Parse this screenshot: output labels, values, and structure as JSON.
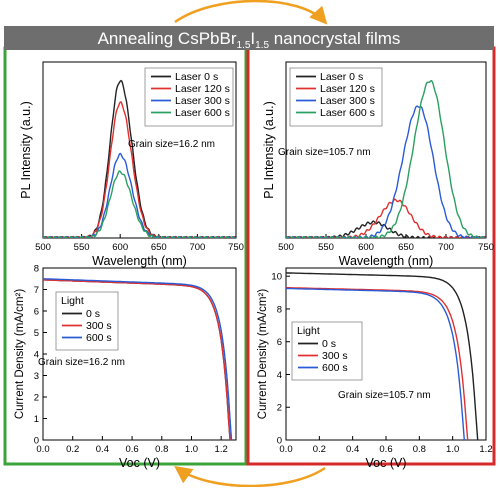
{
  "banner": {
    "title_prefix": "Annealing CsPbBr",
    "sub1": "1.5",
    "middle": "I",
    "sub2": "1.5",
    "title_suffix": " nanocrystal films"
  },
  "colors": {
    "left_frame": "#3aa33a",
    "right_frame": "#d62a2a",
    "banner_bg": "#6e6e6e",
    "arrow": "#f0a021"
  },
  "chart_data": [
    {
      "id": "pl_small",
      "type": "line",
      "xlabel": "Wavelength (nm)",
      "ylabel": "PL Intensity (a.u.)",
      "xlim": [
        500,
        750
      ],
      "xticks": [
        500,
        550,
        600,
        650,
        700,
        750
      ],
      "show_yticks": false,
      "annotation": "Grain size=16.2 nm",
      "legend_title": "",
      "legend_position": "top-right",
      "series": [
        {
          "name": "Laser 0 s",
          "color": "#222222",
          "peak_wavelength": 600,
          "relative_peak": 1.0
        },
        {
          "name": "Laser 120 s",
          "color": "#e03030",
          "peak_wavelength": 600,
          "relative_peak": 0.86
        },
        {
          "name": "Laser 300 s",
          "color": "#2a5bd7",
          "peak_wavelength": 600,
          "relative_peak": 0.53
        },
        {
          "name": "Laser 600 s",
          "color": "#2aa060",
          "peak_wavelength": 600,
          "relative_peak": 0.42
        }
      ]
    },
    {
      "id": "pl_large",
      "type": "line",
      "xlabel": "Wavelength (nm)",
      "ylabel": "PL Intensity (a.u.)",
      "xlim": [
        500,
        750
      ],
      "xticks": [
        500,
        550,
        600,
        650,
        700,
        750
      ],
      "show_yticks": false,
      "annotation": "Grain size=105.7 nm",
      "legend_title": "",
      "legend_position": "top-left",
      "series": [
        {
          "name": "Laser 0 s",
          "color": "#222222",
          "peak_wavelength": 610,
          "relative_peak": 0.1
        },
        {
          "name": "Laser 120 s",
          "color": "#e03030",
          "peak_wavelength": 638,
          "relative_peak": 0.24
        },
        {
          "name": "Laser 300 s",
          "color": "#2a5bd7",
          "peak_wavelength": 666,
          "relative_peak": 0.84
        },
        {
          "name": "Laser 600 s",
          "color": "#2aa060",
          "peak_wavelength": 680,
          "relative_peak": 1.0
        }
      ]
    },
    {
      "id": "jv_small",
      "type": "line",
      "xlabel": "Voc (V)",
      "ylabel": "Current Density (mA/cm²)",
      "xlim": [
        0,
        1.3
      ],
      "ylim": [
        0,
        8
      ],
      "xticks": [
        0.0,
        0.2,
        0.4,
        0.6,
        0.8,
        1.0,
        1.2
      ],
      "yticks": [
        0,
        1,
        2,
        3,
        4,
        5,
        6,
        7,
        8
      ],
      "xtick_decimals": 1,
      "show_yticks": true,
      "annotation": "Grain size=16.2 nm",
      "legend_title": "Light",
      "legend_position": "upper-left",
      "series": [
        {
          "name": "0 s",
          "color": "#222222",
          "jsc": 7.45,
          "voc": 1.26
        },
        {
          "name": "300 s",
          "color": "#e03030",
          "jsc": 7.45,
          "voc": 1.26
        },
        {
          "name": "600 s",
          "color": "#2a5bd7",
          "jsc": 7.5,
          "voc": 1.27
        }
      ]
    },
    {
      "id": "jv_large",
      "type": "line",
      "xlabel": "Voc (V)",
      "ylabel": "Current Density (mA/cm²)",
      "xlim": [
        0,
        1.2
      ],
      "ylim": [
        0,
        10.5
      ],
      "xticks": [
        0.0,
        0.2,
        0.4,
        0.6,
        0.8,
        1.0,
        1.2
      ],
      "yticks": [
        0,
        2,
        4,
        6,
        8,
        10
      ],
      "xtick_decimals": 1,
      "show_yticks": true,
      "annotation": "Grain size=105.7 nm",
      "legend_title": "Light",
      "legend_position": "middle-left",
      "series": [
        {
          "name": "0 s",
          "color": "#222222",
          "jsc": 10.2,
          "voc": 1.15
        },
        {
          "name": "300 s",
          "color": "#e03030",
          "jsc": 9.3,
          "voc": 1.09
        },
        {
          "name": "600 s",
          "color": "#2a5bd7",
          "jsc": 9.25,
          "voc": 1.07
        }
      ]
    }
  ]
}
